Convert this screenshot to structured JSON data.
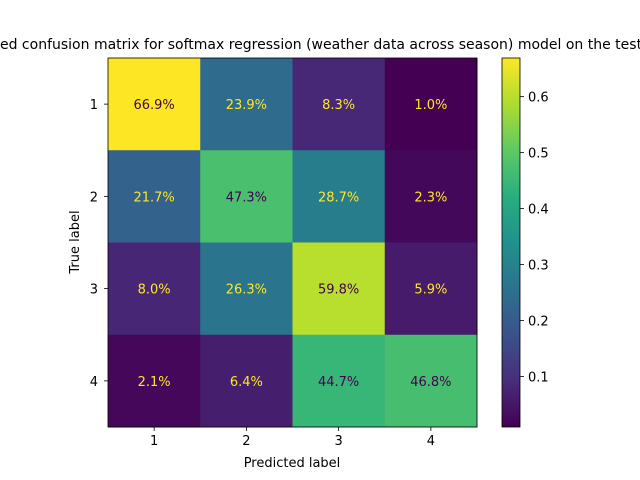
{
  "chart_data": {
    "type": "heatmap",
    "title": "Normalized confusion matrix for softmax regression (weather data across season) model on the test set",
    "xlabel": "Predicted label",
    "ylabel": "True label",
    "x_categories": [
      "1",
      "2",
      "3",
      "4"
    ],
    "y_categories": [
      "1",
      "2",
      "3",
      "4"
    ],
    "values": [
      [
        0.669,
        0.239,
        0.083,
        0.01
      ],
      [
        0.217,
        0.473,
        0.287,
        0.023
      ],
      [
        0.08,
        0.263,
        0.598,
        0.059
      ],
      [
        0.021,
        0.064,
        0.447,
        0.468
      ]
    ],
    "cell_labels": [
      [
        "66.9%",
        "23.9%",
        "8.3%",
        "1.0%"
      ],
      [
        "21.7%",
        "47.3%",
        "28.7%",
        "2.3%"
      ],
      [
        "8.0%",
        "26.3%",
        "59.8%",
        "5.9%"
      ],
      [
        "2.1%",
        "6.4%",
        "44.7%",
        "46.8%"
      ]
    ],
    "colormap": "viridis",
    "color_range": [
      0.01,
      0.669
    ],
    "colorbar_ticks": [
      "0.1",
      "0.2",
      "0.3",
      "0.4",
      "0.5",
      "0.6"
    ],
    "colorbar_tick_values": [
      0.1,
      0.2,
      0.3,
      0.4,
      0.5,
      0.6
    ],
    "grid": false,
    "text_colors": {
      "dark_cell": "#fde725",
      "light_cell": "#440154"
    }
  }
}
